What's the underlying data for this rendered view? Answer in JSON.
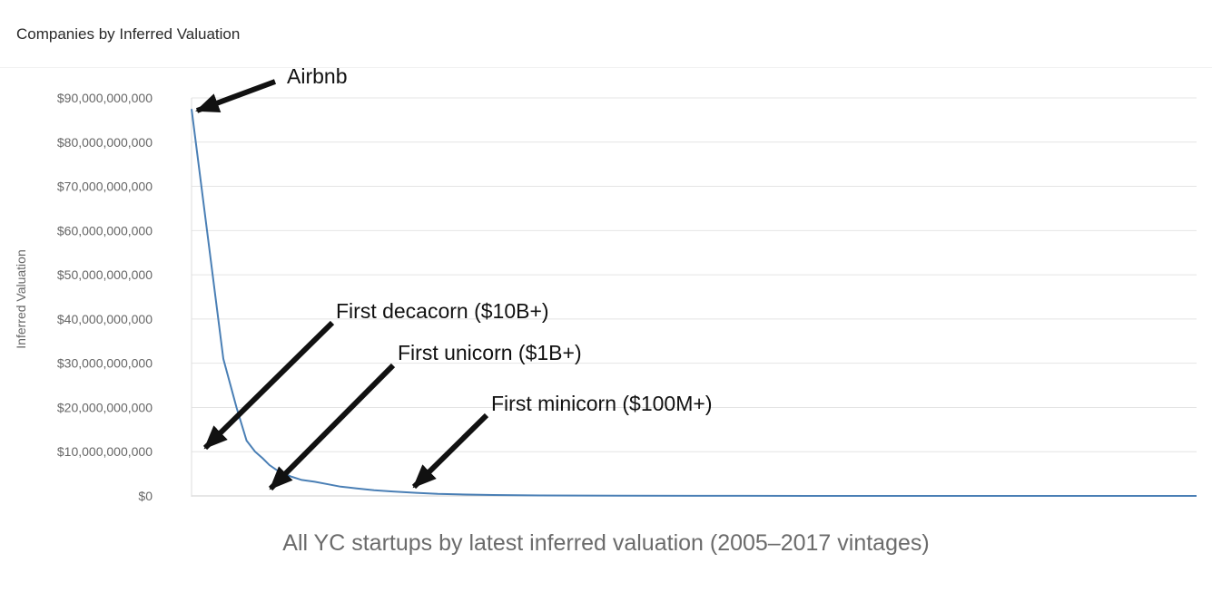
{
  "header": {
    "title": "Companies by Inferred Valuation"
  },
  "caption": "All YC startups by latest inferred valuation (2005–2017 vintages)",
  "chart_data": {
    "type": "line",
    "title": "Companies by Inferred Valuation",
    "xlabel": "",
    "ylabel": "Inferred Valuation",
    "ylim": [
      0,
      90000000000
    ],
    "yticks": [
      "$0",
      "$10,000,000,000",
      "$20,000,000,000",
      "$30,000,000,000",
      "$40,000,000,000",
      "$50,000,000,000",
      "$60,000,000,000",
      "$70,000,000,000",
      "$80,000,000,000",
      "$90,000,000,000"
    ],
    "grid": true,
    "xlim": [
      0,
      1000
    ],
    "series": [
      {
        "color": "#4a7fb5",
        "x": [
          0,
          1,
          2,
          3,
          4,
          5,
          6,
          7,
          8,
          10,
          12,
          15,
          18,
          22,
          27,
          33,
          40,
          50,
          60,
          75,
          90,
          120,
          180,
          300,
          500,
          1000
        ],
        "y": [
          87500000000,
          31000000000,
          20000000000,
          12500000000,
          10000000000,
          8500000000,
          7000000000,
          6000000000,
          5200000000,
          4300000000,
          3600000000,
          3200000000,
          2700000000,
          2100000000,
          1700000000,
          1300000000,
          1000000000,
          700000000,
          450000000,
          300000000,
          200000000,
          100000000,
          50000000,
          20000000,
          5000000,
          0
        ]
      }
    ],
    "annotations": [
      {
        "text": "Airbnb"
      },
      {
        "text": "First decacorn ($10B+)"
      },
      {
        "text": "First unicorn ($1B+)"
      },
      {
        "text": "First minicorn ($100M+)"
      }
    ]
  }
}
